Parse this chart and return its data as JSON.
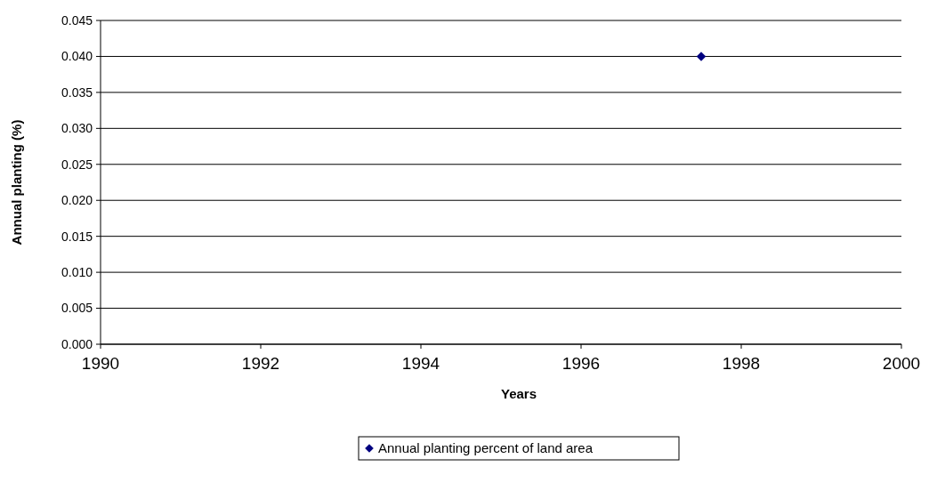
{
  "chart_data": {
    "type": "scatter",
    "xlabel": "Years",
    "ylabel": "Annual planting (%)",
    "x": [
      1997.5
    ],
    "series": [
      {
        "name": "Annual planting percent of land area",
        "color": "#000080",
        "values": [
          0.04
        ]
      }
    ],
    "xlim": [
      1990,
      2000
    ],
    "xticks": [
      1990,
      1992,
      1994,
      1996,
      1998,
      2000
    ],
    "ylim": [
      0,
      0.045
    ],
    "yticks": [
      {
        "value": 0,
        "label": "0.000"
      },
      {
        "value": 0.005,
        "label": "0.005"
      },
      {
        "value": 0.01,
        "label": "0.010"
      },
      {
        "value": 0.015,
        "label": "0.015"
      },
      {
        "value": 0.02,
        "label": "0.020"
      },
      {
        "value": 0.025,
        "label": "0.025"
      },
      {
        "value": 0.03,
        "label": "0.030"
      },
      {
        "value": 0.035,
        "label": "0.035"
      },
      {
        "value": 0.04,
        "label": "0.040"
      },
      {
        "value": 0.045,
        "label": "0.045"
      }
    ],
    "grid": "y",
    "legend": "bottom",
    "marker": "diamond"
  }
}
